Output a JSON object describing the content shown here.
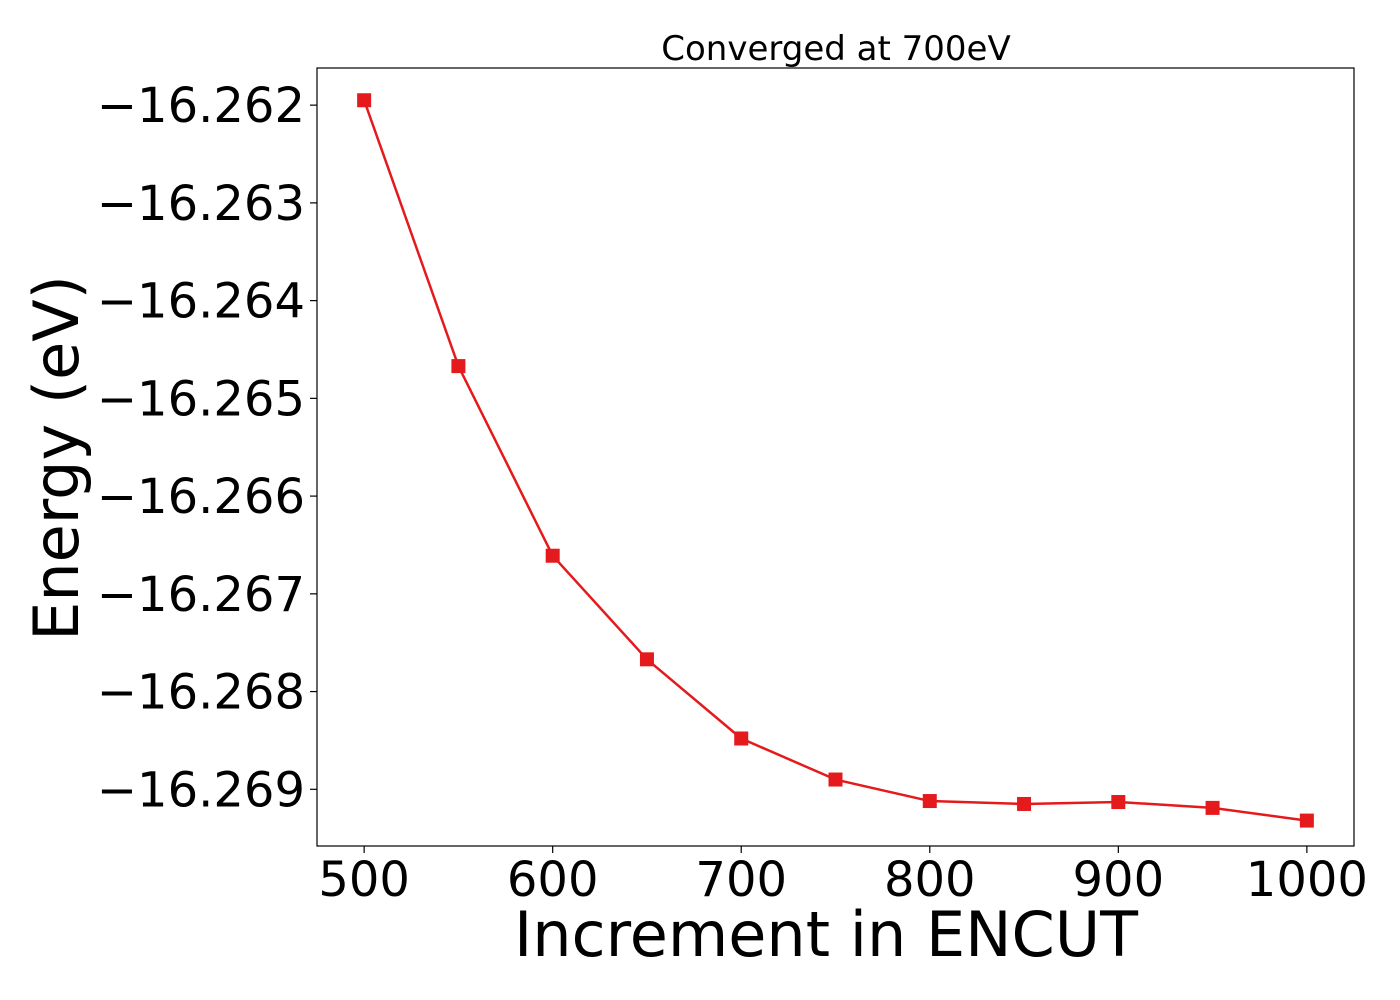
{
  "chart_data": {
    "type": "line",
    "title": "Converged at 700eV",
    "xlabel": "Increment in ENCUT",
    "ylabel": "Energy (eV)",
    "xlim": [
      475,
      1025
    ],
    "ylim": [
      -16.26958,
      -16.26162
    ],
    "xticks": [
      500,
      600,
      700,
      800,
      900,
      1000
    ],
    "xtick_labels": [
      "500",
      "600",
      "700",
      "800",
      "900",
      "1000"
    ],
    "yticks": [
      -16.262,
      -16.263,
      -16.264,
      -16.265,
      -16.266,
      -16.267,
      -16.268,
      -16.269
    ],
    "ytick_labels": [
      "−16.262",
      "−16.263",
      "−16.264",
      "−16.265",
      "−16.266",
      "−16.267",
      "−16.268",
      "−16.269"
    ],
    "grid": false,
    "legend": "none",
    "series": [
      {
        "color": "#e41a1c",
        "marker": "square",
        "x": [
          500,
          550,
          600,
          650,
          700,
          750,
          800,
          850,
          900,
          950,
          1000
        ],
        "y": [
          -16.26195,
          -16.26467,
          -16.26661,
          -16.26767,
          -16.26848,
          -16.2689,
          -16.26912,
          -16.26915,
          -16.26913,
          -16.26919,
          -16.26932
        ]
      }
    ]
  }
}
